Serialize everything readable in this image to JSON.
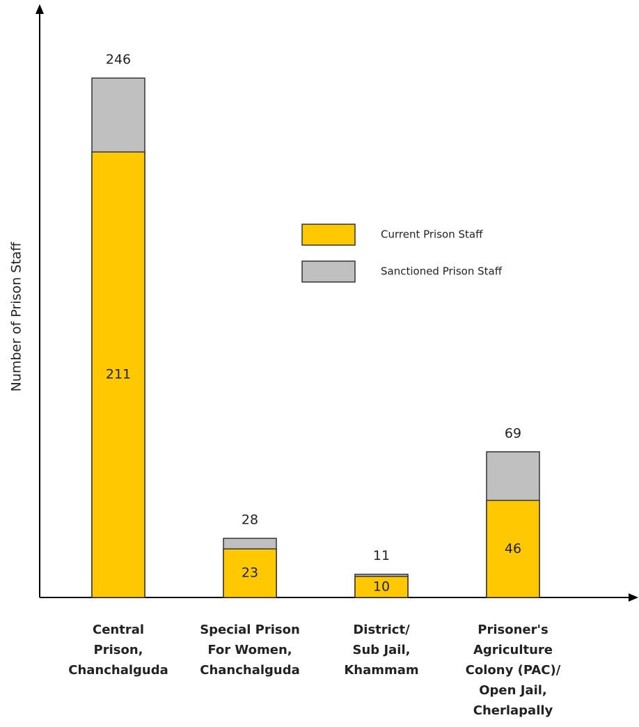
{
  "chart_data": {
    "type": "bar",
    "y_label": "Number of Prison Staff",
    "categories": [
      "Central\nPrison,\nChanchalguda",
      "Special Prison\nFor Women,\nChanchalguda",
      "District/\nSub Jail,\nKhammam",
      "Prisoner's\nAgriculture\nColony (PAC)/\nOpen Jail,\nCherlapally"
    ],
    "series": [
      {
        "name": "Current Prison Staff",
        "color": "#ffc800",
        "values": [
          211,
          23,
          10,
          46
        ]
      },
      {
        "name": "Sanctioned Prison Staff",
        "color": "#c0c0c0",
        "values": [
          246,
          28,
          11,
          69
        ]
      }
    ],
    "ylim": [
      0,
      250
    ],
    "grid": false
  }
}
